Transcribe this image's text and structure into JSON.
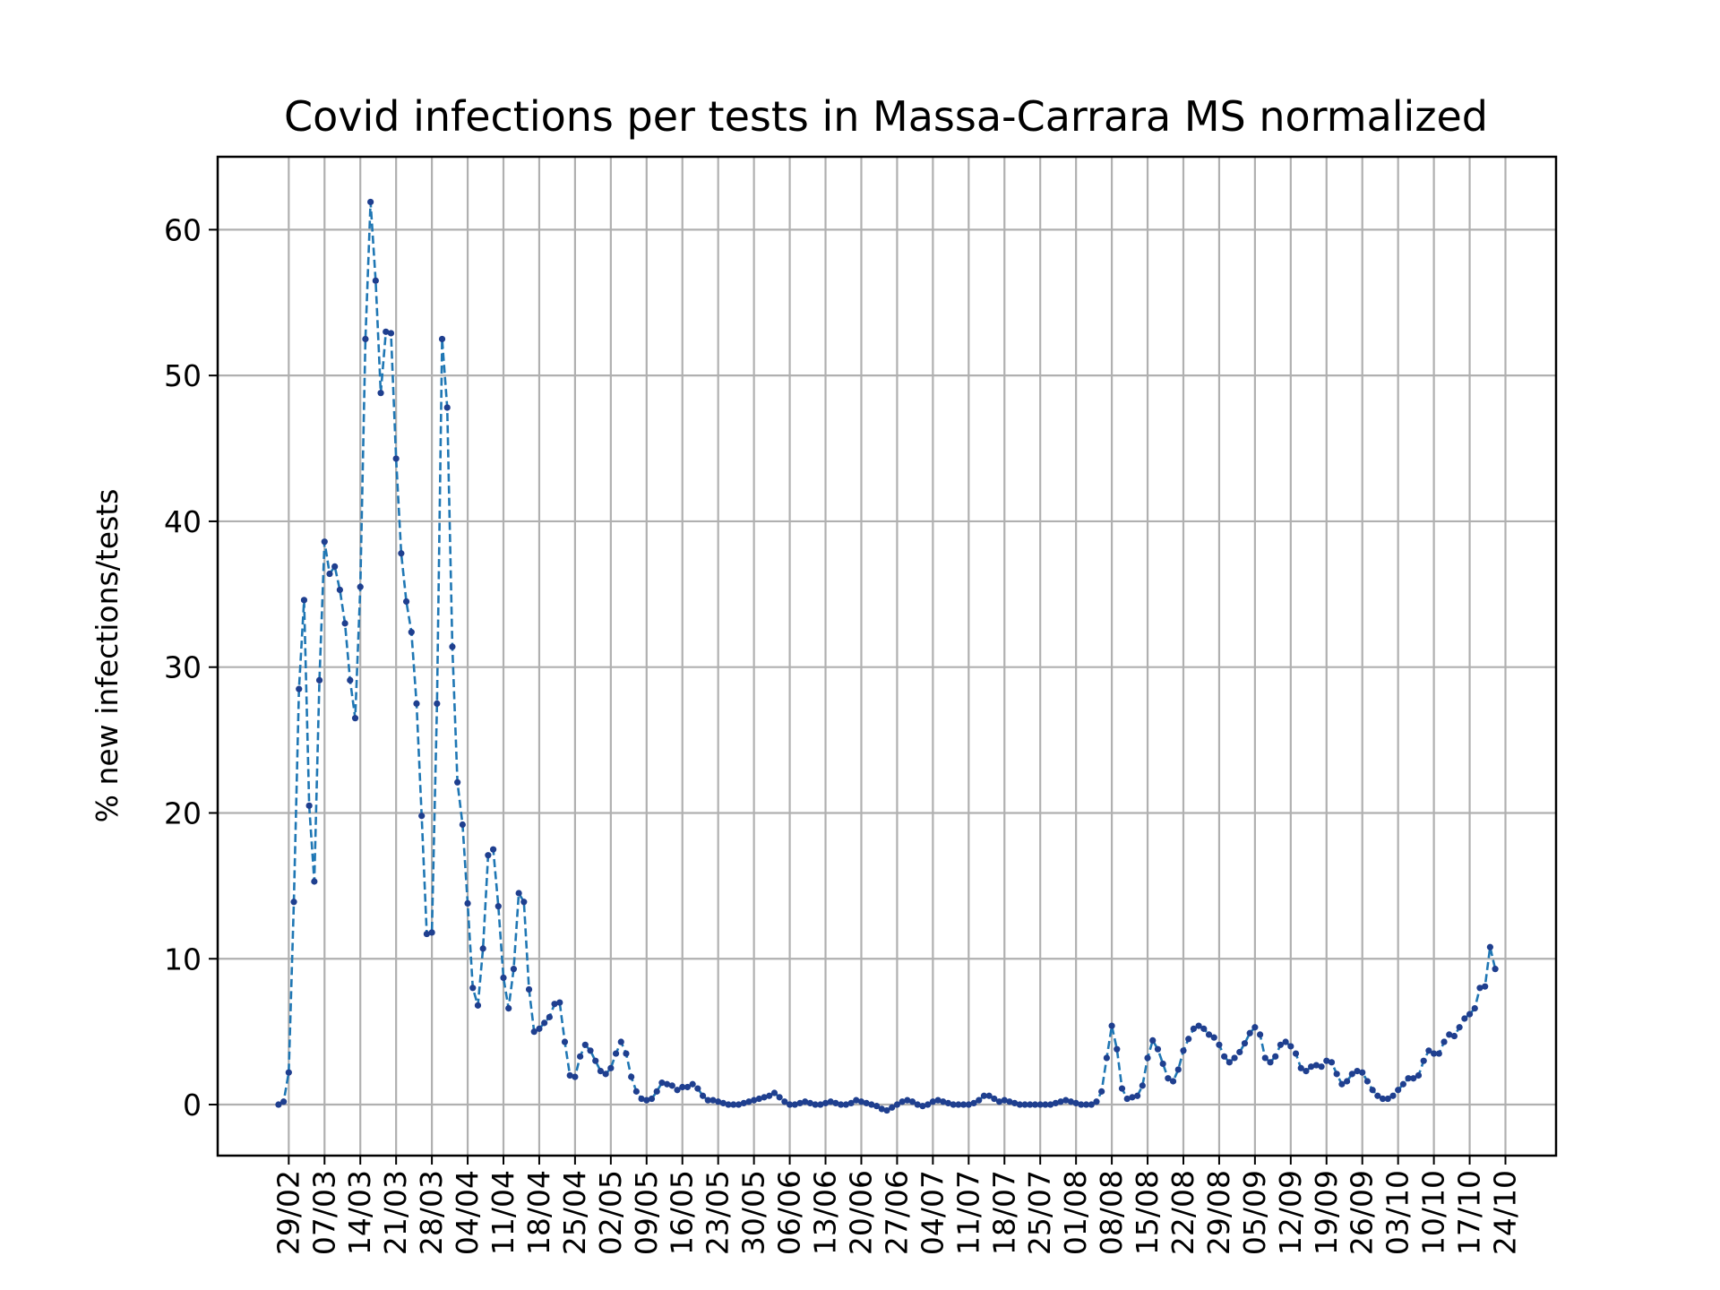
{
  "chart_data": {
    "type": "line",
    "title": "Covid infections per tests in Massa-Carrara MS normalized",
    "xlabel": "",
    "ylabel": "% new infections/tests",
    "ylim": [
      -3.5,
      65
    ],
    "yticks": [
      0,
      10,
      20,
      30,
      40,
      50,
      60
    ],
    "xtick_labels": [
      "29/02",
      "07/03",
      "14/03",
      "21/03",
      "28/03",
      "04/04",
      "11/04",
      "18/04",
      "25/04",
      "02/05",
      "09/05",
      "16/05",
      "23/05",
      "30/05",
      "06/06",
      "13/06",
      "20/06",
      "27/06",
      "04/07",
      "11/07",
      "18/07",
      "25/07",
      "01/08",
      "08/08",
      "15/08",
      "22/08",
      "29/08",
      "05/09",
      "12/09",
      "19/09",
      "26/09",
      "03/10",
      "10/10",
      "17/10",
      "24/10"
    ],
    "x_start": "2020-02-27",
    "grid": true,
    "line_color": "#1f77b4",
    "marker_color": "#1f3f8f",
    "line_style": "dashed",
    "series": [
      {
        "values": [
          0,
          0.2,
          2.2,
          13.9,
          28.5,
          34.6,
          20.5,
          15.3,
          29.1,
          38.6,
          36.4,
          36.9,
          35.3,
          33,
          29.1,
          26.5,
          35.5,
          52.5,
          61.9,
          56.5,
          48.8,
          53,
          52.9,
          44.3,
          37.8,
          34.5,
          32.4,
          27.5,
          19.8,
          11.7,
          11.8,
          27.5,
          52.5,
          47.8,
          31.4,
          22.1,
          19.2,
          13.8,
          8,
          6.8,
          10.7,
          17.1,
          17.5,
          13.6,
          8.7,
          6.6,
          9.3,
          14.5,
          13.9,
          7.9,
          5,
          5.2,
          5.6,
          6,
          6.9,
          7,
          4.3,
          2,
          1.9,
          3.3,
          4.1,
          3.7,
          3,
          2.3,
          2.1,
          2.5,
          3.5,
          4.3,
          3.5,
          1.9,
          0.9,
          0.4,
          0.3,
          0.4,
          0.9,
          1.5,
          1.4,
          1.3,
          1,
          1.2,
          1.2,
          1.4,
          1.1,
          0.6,
          0.3,
          0.3,
          0.2,
          0.1,
          0,
          0,
          0,
          0.1,
          0.2,
          0.3,
          0.4,
          0.5,
          0.6,
          0.8,
          0.5,
          0.2,
          0,
          0,
          0.1,
          0.2,
          0.1,
          0,
          0,
          0.1,
          0.2,
          0.1,
          0,
          0,
          0.1,
          0.3,
          0.2,
          0.1,
          0,
          -0.1,
          -0.3,
          -0.4,
          -0.2,
          0,
          0.2,
          0.3,
          0.2,
          0,
          -0.1,
          0,
          0.2,
          0.3,
          0.2,
          0.1,
          0,
          0,
          0,
          0,
          0.1,
          0.3,
          0.6,
          0.6,
          0.4,
          0.2,
          0.3,
          0.2,
          0.1,
          0,
          0,
          0,
          0,
          0,
          0,
          0,
          0.1,
          0.2,
          0.3,
          0.2,
          0.1,
          0,
          0,
          0,
          0.2,
          0.9,
          3.2,
          5.4,
          3.8,
          1.1,
          0.4,
          0.5,
          0.6,
          1.3,
          3.2,
          4.4,
          3.8,
          2.8,
          1.8,
          1.6,
          2.4,
          3.7,
          4.5,
          5.2,
          5.4,
          5.2,
          4.8,
          4.6,
          4.1,
          3.3,
          2.9,
          3.2,
          3.6,
          4.2,
          4.9,
          5.3,
          4.8,
          3.2,
          2.9,
          3.3,
          4.1,
          4.3,
          4,
          3.5,
          2.5,
          2.3,
          2.6,
          2.7,
          2.6,
          3,
          2.9,
          2.1,
          1.4,
          1.6,
          2.1,
          2.3,
          2.2,
          1.6,
          1,
          0.6,
          0.4,
          0.4,
          0.6,
          1,
          1.4,
          1.8,
          1.8,
          2,
          3,
          3.7,
          3.5,
          3.5,
          4.3,
          4.8,
          4.7,
          5.3,
          5.9,
          6.2,
          6.6,
          8,
          8.1,
          10.8,
          9.3
        ]
      }
    ]
  }
}
